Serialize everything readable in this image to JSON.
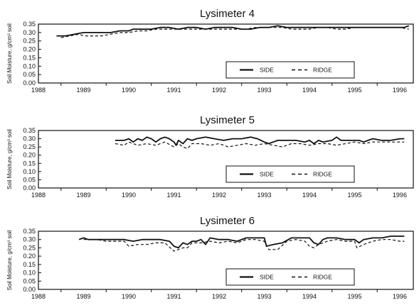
{
  "chart_data": [
    {
      "type": "line",
      "title": "Lysimeter 4",
      "ylabel": "Soil Moisture, g/cm³ soil",
      "ylim": [
        0,
        0.35
      ],
      "xlim": [
        1988,
        1996.3
      ],
      "y_ticks": [
        "0.00",
        "0.05",
        "0.10",
        "0.15",
        "0.20",
        "0.25",
        "0.30",
        "0.35"
      ],
      "x_ticks": [
        "1988",
        "1989",
        "1990",
        "1991",
        "1992",
        "1993",
        "1994",
        "1995",
        "1996"
      ],
      "grid": false,
      "legend": "bottom-right",
      "series": [
        {
          "name": "SIDE",
          "style": "solid",
          "x": [
            1988.4,
            1988.6,
            1988.8,
            1989.0,
            1989.2,
            1989.4,
            1989.6,
            1989.8,
            1990.0,
            1990.1,
            1990.2,
            1990.3,
            1990.5,
            1990.7,
            1990.9,
            1991.1,
            1991.3,
            1991.5,
            1991.7,
            1991.9,
            1992.1,
            1992.3,
            1992.5,
            1992.7,
            1992.9,
            1993.1,
            1993.3,
            1993.5,
            1993.7,
            1993.9,
            1994.1,
            1994.3,
            1994.5,
            1994.7,
            1994.9,
            1995.1,
            1995.3,
            1995.5,
            1995.7,
            1995.9,
            1996.1,
            1996.2
          ],
          "values": [
            0.28,
            0.28,
            0.29,
            0.3,
            0.3,
            0.3,
            0.3,
            0.31,
            0.31,
            0.32,
            0.32,
            0.32,
            0.32,
            0.33,
            0.33,
            0.32,
            0.33,
            0.33,
            0.32,
            0.33,
            0.33,
            0.33,
            0.32,
            0.32,
            0.33,
            0.33,
            0.34,
            0.33,
            0.33,
            0.33,
            0.33,
            0.33,
            0.33,
            0.33,
            0.33,
            0.33,
            0.33,
            0.33,
            0.33,
            0.33,
            0.33,
            0.34
          ]
        },
        {
          "name": "RIDGE",
          "style": "dashed",
          "x": [
            1988.5,
            1988.7,
            1988.9,
            1989.0,
            1989.2,
            1989.4,
            1989.6,
            1989.8,
            1990.0,
            1990.2,
            1990.4,
            1990.6,
            1990.8,
            1991.0,
            1991.2,
            1991.4,
            1991.6,
            1991.8,
            1992.0,
            1992.2,
            1992.4,
            1992.6,
            1992.8,
            1993.0,
            1993.2,
            1993.4,
            1993.6,
            1993.8,
            1994.0,
            1994.2,
            1994.4,
            1994.6,
            1994.8,
            1995.0,
            1995.2,
            1995.4,
            1995.6,
            1995.8,
            1996.0,
            1996.2
          ],
          "values": [
            0.27,
            0.28,
            0.29,
            0.28,
            0.28,
            0.28,
            0.29,
            0.3,
            0.3,
            0.31,
            0.31,
            0.32,
            0.32,
            0.32,
            0.32,
            0.32,
            0.32,
            0.32,
            0.32,
            0.32,
            0.32,
            0.32,
            0.33,
            0.33,
            0.33,
            0.33,
            0.32,
            0.32,
            0.32,
            0.33,
            0.33,
            0.32,
            0.32,
            0.33,
            0.33,
            0.33,
            0.33,
            0.33,
            0.33,
            0.32
          ]
        }
      ]
    },
    {
      "type": "line",
      "title": "Lysimeter 5",
      "ylabel": "Soil Moisture, g/cm³ soil",
      "ylim": [
        0,
        0.35
      ],
      "xlim": [
        1988,
        1996.3
      ],
      "y_ticks": [
        "0.00",
        "0.05",
        "0.10",
        "0.15",
        "0.20",
        "0.25",
        "0.30",
        "0.35"
      ],
      "x_ticks": [
        "1988",
        "1989",
        "1990",
        "1991",
        "1992",
        "1993",
        "1994",
        "1995",
        "1996"
      ],
      "grid": false,
      "legend": "bottom-right",
      "series": [
        {
          "name": "SIDE",
          "style": "solid",
          "x": [
            1989.7,
            1989.9,
            1990.0,
            1990.1,
            1990.2,
            1990.3,
            1990.4,
            1990.5,
            1990.6,
            1990.7,
            1990.8,
            1990.9,
            1991.0,
            1991.05,
            1991.1,
            1991.2,
            1991.3,
            1991.4,
            1991.5,
            1991.7,
            1991.9,
            1992.1,
            1992.3,
            1992.5,
            1992.7,
            1992.85,
            1993.0,
            1993.1,
            1993.3,
            1993.5,
            1993.7,
            1993.9,
            1994.0,
            1994.1,
            1994.2,
            1994.3,
            1994.5,
            1994.6,
            1994.7,
            1994.9,
            1995.1,
            1995.2,
            1995.3,
            1995.4,
            1995.6,
            1995.8,
            1996.0,
            1996.1
          ],
          "values": [
            0.29,
            0.29,
            0.3,
            0.28,
            0.3,
            0.29,
            0.31,
            0.3,
            0.28,
            0.3,
            0.31,
            0.3,
            0.28,
            0.26,
            0.29,
            0.27,
            0.3,
            0.29,
            0.3,
            0.31,
            0.3,
            0.29,
            0.3,
            0.3,
            0.31,
            0.3,
            0.28,
            0.27,
            0.29,
            0.29,
            0.29,
            0.28,
            0.29,
            0.27,
            0.29,
            0.28,
            0.29,
            0.31,
            0.29,
            0.29,
            0.29,
            0.28,
            0.29,
            0.3,
            0.29,
            0.29,
            0.3,
            0.3
          ]
        },
        {
          "name": "RIDGE",
          "style": "dashed",
          "x": [
            1989.7,
            1989.9,
            1990.0,
            1990.2,
            1990.4,
            1990.6,
            1990.8,
            1991.0,
            1991.1,
            1991.2,
            1991.3,
            1991.4,
            1991.6,
            1991.8,
            1992.0,
            1992.2,
            1992.4,
            1992.6,
            1992.8,
            1993.0,
            1993.2,
            1993.4,
            1993.6,
            1993.8,
            1994.0,
            1994.2,
            1994.4,
            1994.6,
            1994.8,
            1995.0,
            1995.2,
            1995.4,
            1995.6,
            1995.8,
            1996.0,
            1996.1
          ],
          "values": [
            0.27,
            0.26,
            0.28,
            0.26,
            0.27,
            0.26,
            0.28,
            0.25,
            0.27,
            0.25,
            0.24,
            0.27,
            0.27,
            0.26,
            0.27,
            0.25,
            0.26,
            0.27,
            0.26,
            0.27,
            0.26,
            0.25,
            0.27,
            0.27,
            0.26,
            0.27,
            0.27,
            0.26,
            0.27,
            0.28,
            0.27,
            0.28,
            0.28,
            0.28,
            0.28,
            0.28
          ]
        }
      ]
    },
    {
      "type": "line",
      "title": "Lysimeter 6",
      "ylabel": "Soil Moisture, g/cm³ soil",
      "ylim": [
        0,
        0.35
      ],
      "xlim": [
        1988,
        1996.3
      ],
      "y_ticks": [
        "0.00",
        "0.05",
        "0.10",
        "0.15",
        "0.20",
        "0.25",
        "0.30",
        "0.35"
      ],
      "x_ticks": [
        "1988",
        "1989",
        "1990",
        "1991",
        "1992",
        "1993",
        "1994",
        "1995",
        "1996"
      ],
      "grid": false,
      "legend": "bottom-right",
      "series": [
        {
          "name": "SIDE",
          "style": "solid",
          "x": [
            1988.9,
            1989.0,
            1989.1,
            1989.3,
            1989.5,
            1989.7,
            1989.9,
            1990.1,
            1990.3,
            1990.5,
            1990.7,
            1990.9,
            1991.0,
            1991.1,
            1991.2,
            1991.3,
            1991.4,
            1991.5,
            1991.6,
            1991.7,
            1991.8,
            1992.0,
            1992.2,
            1992.4,
            1992.6,
            1992.8,
            1993.0,
            1993.05,
            1993.2,
            1993.4,
            1993.6,
            1993.8,
            1994.0,
            1994.1,
            1994.2,
            1994.3,
            1994.4,
            1994.6,
            1994.8,
            1995.0,
            1995.1,
            1995.2,
            1995.4,
            1995.6,
            1995.8,
            1996.0,
            1996.1
          ],
          "values": [
            0.3,
            0.31,
            0.3,
            0.3,
            0.3,
            0.3,
            0.3,
            0.29,
            0.3,
            0.3,
            0.3,
            0.29,
            0.26,
            0.25,
            0.28,
            0.27,
            0.29,
            0.29,
            0.3,
            0.27,
            0.31,
            0.3,
            0.3,
            0.29,
            0.31,
            0.31,
            0.31,
            0.26,
            0.27,
            0.28,
            0.31,
            0.31,
            0.31,
            0.28,
            0.27,
            0.3,
            0.31,
            0.31,
            0.3,
            0.3,
            0.28,
            0.3,
            0.31,
            0.31,
            0.32,
            0.32,
            0.32
          ]
        },
        {
          "name": "RIDGE",
          "style": "dashed",
          "x": [
            1989.0,
            1989.1,
            1989.3,
            1989.5,
            1989.7,
            1989.9,
            1990.0,
            1990.2,
            1990.4,
            1990.6,
            1990.8,
            1991.0,
            1991.1,
            1991.2,
            1991.3,
            1991.4,
            1991.6,
            1991.8,
            1992.0,
            1992.2,
            1992.4,
            1992.6,
            1992.8,
            1993.0,
            1993.1,
            1993.3,
            1993.5,
            1993.7,
            1993.9,
            1994.0,
            1994.1,
            1994.2,
            1994.4,
            1994.6,
            1994.8,
            1995.0,
            1995.05,
            1995.2,
            1995.4,
            1995.6,
            1995.8,
            1996.0,
            1996.1
          ],
          "values": [
            0.3,
            0.3,
            0.3,
            0.29,
            0.29,
            0.29,
            0.26,
            0.27,
            0.27,
            0.28,
            0.28,
            0.23,
            0.24,
            0.25,
            0.25,
            0.28,
            0.28,
            0.29,
            0.28,
            0.29,
            0.28,
            0.3,
            0.3,
            0.29,
            0.24,
            0.24,
            0.29,
            0.3,
            0.29,
            0.26,
            0.25,
            0.27,
            0.29,
            0.3,
            0.29,
            0.29,
            0.25,
            0.27,
            0.29,
            0.3,
            0.3,
            0.29,
            0.29
          ]
        }
      ]
    }
  ],
  "colors": {
    "ink": "#111111",
    "background": "#ffffff"
  }
}
